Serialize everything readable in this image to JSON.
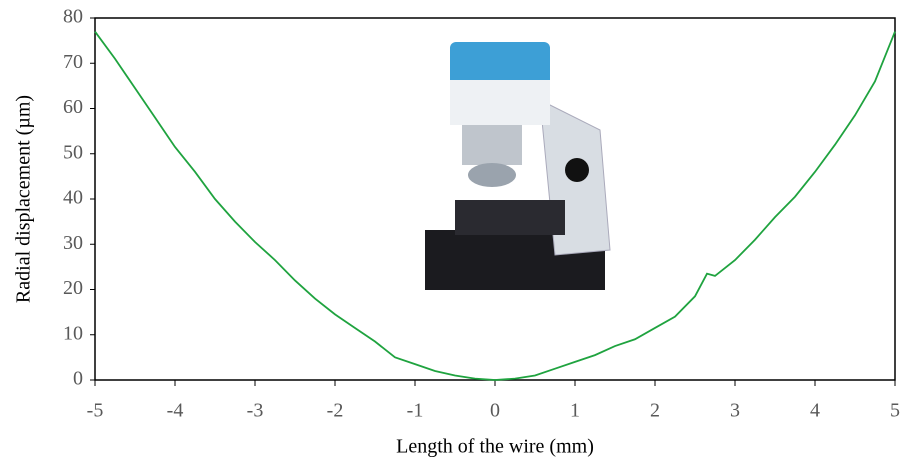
{
  "chart_data": {
    "type": "line",
    "x_label": "Length of the wire (mm)",
    "y_label": "Radial displacement (µm)",
    "x": [
      -5,
      -4.75,
      -4.5,
      -4.25,
      -4,
      -3.75,
      -3.5,
      -3.25,
      -3,
      -2.75,
      -2.5,
      -2.25,
      -2,
      -1.75,
      -1.5,
      -1.25,
      -1,
      -0.75,
      -0.5,
      -0.25,
      0,
      0.25,
      0.5,
      0.75,
      1,
      1.25,
      1.5,
      1.75,
      2,
      2.25,
      2.5,
      2.65,
      2.75,
      3,
      3.25,
      3.5,
      3.75,
      4,
      4.25,
      4.5,
      4.75,
      5
    ],
    "series": [
      {
        "color": "#1fa33f",
        "values": [
          77,
          71,
          64.5,
          58,
          51.5,
          46,
          40,
          35,
          30.5,
          26.5,
          22,
          18,
          14.5,
          11.5,
          8.5,
          5,
          3.5,
          2,
          1,
          0.3,
          0,
          0.3,
          1,
          2.5,
          4,
          5.5,
          7.5,
          9,
          11.5,
          14,
          18.5,
          23.5,
          23,
          26.5,
          31,
          36,
          40.5,
          46,
          52,
          58.5,
          66,
          77
        ]
      }
    ],
    "xlim": [
      -5,
      5
    ],
    "xticks": [
      -5,
      -4,
      -3,
      -2,
      -1,
      0,
      1,
      2,
      3,
      4,
      5
    ],
    "ylim": [
      0,
      80
    ],
    "yticks": [
      0,
      10,
      20,
      30,
      40,
      50,
      60,
      70,
      80
    ]
  }
}
